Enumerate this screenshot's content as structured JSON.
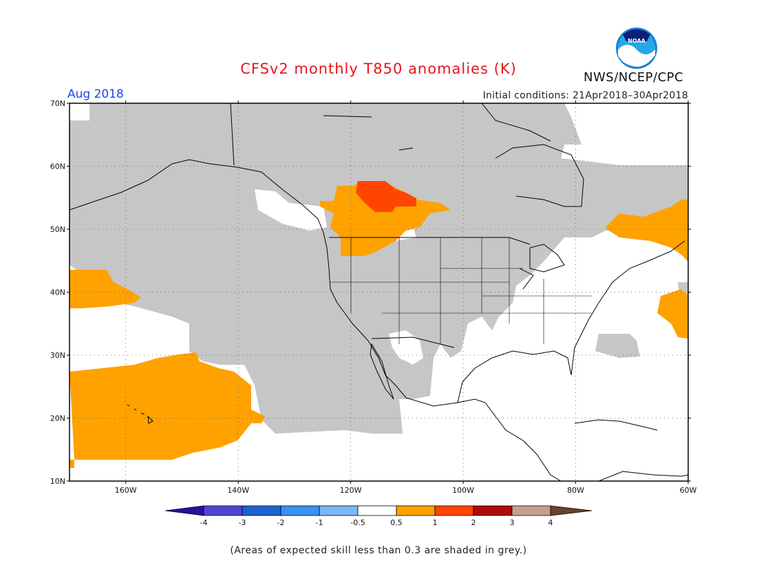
{
  "header": {
    "title": "CFSv2 monthly T850 anomalies (K)",
    "agency": "NWS/NCEP/CPC",
    "logo_text": "NOAA",
    "month": "Aug 2018",
    "initial_conditions": "Initial conditions: 21Apr2018–30Apr2018"
  },
  "axes": {
    "lat_labels": [
      "70N",
      "60N",
      "50N",
      "40N",
      "30N",
      "20N",
      "10N"
    ],
    "lon_labels": [
      "160W",
      "140W",
      "120W",
      "100W",
      "80W",
      "60W"
    ]
  },
  "colorbar": {
    "bins": [
      {
        "color": "#2a0e9e"
      },
      {
        "color": "#4f45d4"
      },
      {
        "color": "#1c63d1"
      },
      {
        "color": "#3a93f0"
      },
      {
        "color": "#7ab8f5"
      },
      {
        "color": "#ffffff"
      },
      {
        "color": "#ffa200"
      },
      {
        "color": "#ff4500"
      },
      {
        "color": "#b00a0a"
      },
      {
        "color": "#c8a090"
      },
      {
        "color": "#6e4030"
      }
    ],
    "tick_labels": [
      "-4",
      "-3",
      "-2",
      "-1",
      "-0.5",
      "0.5",
      "1",
      "2",
      "3",
      "4"
    ]
  },
  "legend_colors": {
    "low_skill_grey": "#c6c6c6",
    "anomaly_0_5_to_1": "#ffa200",
    "anomaly_1_to_2": "#ff4500"
  },
  "footnote": "(Areas of expected skill less than 0.3 are shaded in grey.)"
}
